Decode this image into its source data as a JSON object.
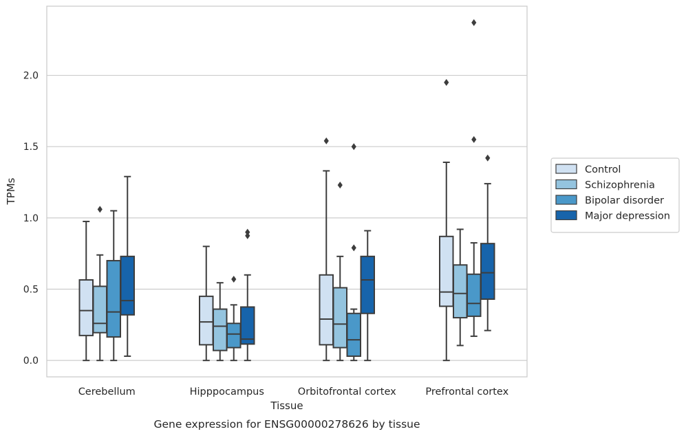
{
  "chart_data": {
    "type": "boxplot",
    "caption": "Gene expression for ENSG00000278626 by tissue",
    "xlabel": "Tissue",
    "ylabel": "TPMs",
    "ylim": [
      -0.115,
      2.485
    ],
    "yticks": [
      "0.0",
      "0.5",
      "1.0",
      "1.5",
      "2.0"
    ],
    "grid": true,
    "legend": "right",
    "categories": [
      "Cerebellum",
      "Hipppocampus",
      "Orbitofrontal cortex",
      "Prefrontal cortex"
    ],
    "series": [
      {
        "name": "Control",
        "color": "#d0e1f2",
        "boxes": [
          {
            "whisker_low": 0.0,
            "q1": 0.175,
            "median": 0.35,
            "q3": 0.565,
            "whisker_high": 0.975,
            "outliers": []
          },
          {
            "whisker_low": 0.0,
            "q1": 0.11,
            "median": 0.27,
            "q3": 0.45,
            "whisker_high": 0.8,
            "outliers": []
          },
          {
            "whisker_low": 0.0,
            "q1": 0.11,
            "median": 0.29,
            "q3": 0.6,
            "whisker_high": 1.33,
            "outliers": [
              1.54
            ]
          },
          {
            "whisker_low": 0.0,
            "q1": 0.38,
            "median": 0.48,
            "q3": 0.87,
            "whisker_high": 1.39,
            "outliers": [
              1.95
            ]
          }
        ]
      },
      {
        "name": "Schizophrenia",
        "color": "#94c4df",
        "boxes": [
          {
            "whisker_low": 0.0,
            "q1": 0.195,
            "median": 0.26,
            "q3": 0.52,
            "whisker_high": 0.74,
            "outliers": [
              1.06
            ]
          },
          {
            "whisker_low": 0.0,
            "q1": 0.07,
            "median": 0.24,
            "q3": 0.36,
            "whisker_high": 0.545,
            "outliers": []
          },
          {
            "whisker_low": 0.0,
            "q1": 0.09,
            "median": 0.255,
            "q3": 0.51,
            "whisker_high": 0.73,
            "outliers": [
              1.23
            ]
          },
          {
            "whisker_low": 0.105,
            "q1": 0.3,
            "median": 0.47,
            "q3": 0.67,
            "whisker_high": 0.92,
            "outliers": []
          }
        ]
      },
      {
        "name": "Bipolar disorder",
        "color": "#4a98c9",
        "boxes": [
          {
            "whisker_low": 0.0,
            "q1": 0.165,
            "median": 0.34,
            "q3": 0.7,
            "whisker_high": 1.05,
            "outliers": []
          },
          {
            "whisker_low": 0.0,
            "q1": 0.09,
            "median": 0.185,
            "q3": 0.26,
            "whisker_high": 0.39,
            "outliers": [
              0.57
            ]
          },
          {
            "whisker_low": 0.0,
            "q1": 0.03,
            "median": 0.145,
            "q3": 0.33,
            "whisker_high": 0.36,
            "outliers": [
              0.79,
              1.5
            ]
          },
          {
            "whisker_low": 0.17,
            "q1": 0.31,
            "median": 0.4,
            "q3": 0.605,
            "whisker_high": 0.825,
            "outliers": [
              1.55,
              2.37
            ]
          }
        ]
      },
      {
        "name": "Major depression",
        "color": "#1764ab",
        "boxes": [
          {
            "whisker_low": 0.03,
            "q1": 0.32,
            "median": 0.42,
            "q3": 0.73,
            "whisker_high": 1.29,
            "outliers": []
          },
          {
            "whisker_low": 0.0,
            "q1": 0.115,
            "median": 0.15,
            "q3": 0.375,
            "whisker_high": 0.6,
            "outliers": [
              0.875,
              0.9
            ]
          },
          {
            "whisker_low": 0.0,
            "q1": 0.33,
            "median": 0.565,
            "q3": 0.73,
            "whisker_high": 0.91,
            "outliers": []
          },
          {
            "whisker_low": 0.21,
            "q1": 0.43,
            "median": 0.615,
            "q3": 0.82,
            "whisker_high": 1.24,
            "outliers": [
              1.42
            ]
          }
        ]
      }
    ]
  }
}
